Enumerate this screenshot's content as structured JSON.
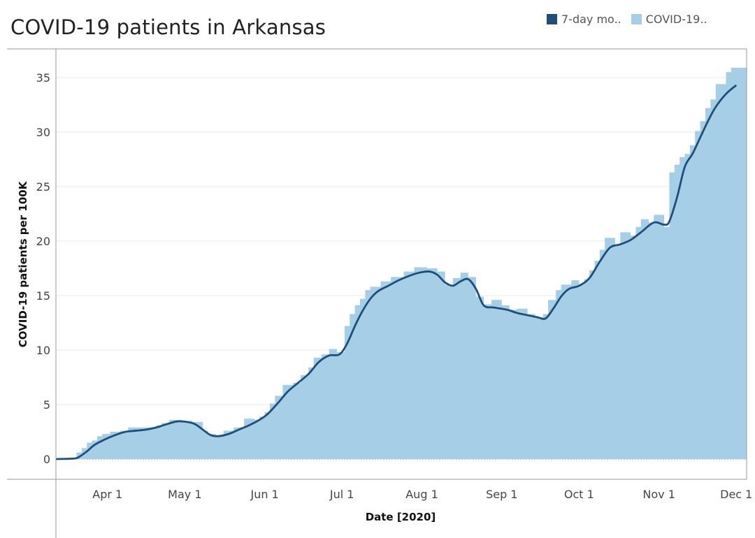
{
  "title": "COVID-19 patients in Arkansas",
  "colors": {
    "line": "#1f4e79",
    "area": "#a6cee6",
    "axis": "#999999",
    "grid": "#ebebeb"
  },
  "legend": [
    {
      "label": "7-day mo..",
      "color": "#1f4e79"
    },
    {
      "label": "COVID-19..",
      "color": "#a6cee6"
    }
  ],
  "chart_data": {
    "type": "area",
    "xlabel": "Date [2020]",
    "ylabel": "COVID-19 patients per 100K",
    "ylim": [
      0,
      37.5
    ],
    "yticks": [
      0,
      5,
      10,
      15,
      20,
      25,
      30,
      35
    ],
    "xlim": [
      "2020-03-12",
      "2020-12-05"
    ],
    "xticks": [
      {
        "label": "Apr 1",
        "date": "2020-04-01"
      },
      {
        "label": "May 1",
        "date": "2020-05-01"
      },
      {
        "label": "Jun 1",
        "date": "2020-06-01"
      },
      {
        "label": "Jul 1",
        "date": "2020-07-01"
      },
      {
        "label": "Aug 1",
        "date": "2020-08-01"
      },
      {
        "label": "Sep 1",
        "date": "2020-09-01"
      },
      {
        "label": "Oct 1",
        "date": "2020-10-01"
      },
      {
        "label": "Nov 1",
        "date": "2020-11-01"
      },
      {
        "label": "Dec 1",
        "date": "2020-12-01"
      }
    ],
    "grid": true,
    "series": [
      {
        "name": "COVID-19..",
        "kind": "step-area",
        "points": [
          [
            "2020-03-12",
            0
          ],
          [
            "2020-03-19",
            0
          ],
          [
            "2020-03-20",
            0.6
          ],
          [
            "2020-03-22",
            1.0
          ],
          [
            "2020-03-24",
            1.5
          ],
          [
            "2020-03-26",
            1.7
          ],
          [
            "2020-03-28",
            2.1
          ],
          [
            "2020-03-30",
            2.3
          ],
          [
            "2020-04-02",
            2.5
          ],
          [
            "2020-04-06",
            2.6
          ],
          [
            "2020-04-09",
            2.9
          ],
          [
            "2020-04-14",
            2.9
          ],
          [
            "2020-04-18",
            2.9
          ],
          [
            "2020-04-20",
            3.1
          ],
          [
            "2020-04-22",
            3.3
          ],
          [
            "2020-04-25",
            3.6
          ],
          [
            "2020-04-27",
            3.6
          ],
          [
            "2020-04-30",
            3.5
          ],
          [
            "2020-05-04",
            3.4
          ],
          [
            "2020-05-08",
            2.6
          ],
          [
            "2020-05-10",
            2.3
          ],
          [
            "2020-05-13",
            2.2
          ],
          [
            "2020-05-16",
            2.6
          ],
          [
            "2020-05-20",
            2.9
          ],
          [
            "2020-05-24",
            3.7
          ],
          [
            "2020-05-28",
            3.6
          ],
          [
            "2020-05-30",
            3.9
          ],
          [
            "2020-06-01",
            4.3
          ],
          [
            "2020-06-03",
            5.1
          ],
          [
            "2020-06-05",
            5.8
          ],
          [
            "2020-06-08",
            6.8
          ],
          [
            "2020-06-12",
            7.0
          ],
          [
            "2020-06-15",
            7.7
          ],
          [
            "2020-06-18",
            8.4
          ],
          [
            "2020-06-20",
            9.3
          ],
          [
            "2020-06-23",
            9.6
          ],
          [
            "2020-06-26",
            10.1
          ],
          [
            "2020-06-29",
            9.8
          ],
          [
            "2020-07-02",
            12.2
          ],
          [
            "2020-07-04",
            13.3
          ],
          [
            "2020-07-06",
            14.1
          ],
          [
            "2020-07-08",
            14.7
          ],
          [
            "2020-07-10",
            15.5
          ],
          [
            "2020-07-12",
            15.8
          ],
          [
            "2020-07-16",
            16.3
          ],
          [
            "2020-07-20",
            16.7
          ],
          [
            "2020-07-25",
            17.2
          ],
          [
            "2020-07-29",
            17.6
          ],
          [
            "2020-08-03",
            17.5
          ],
          [
            "2020-08-07",
            17.2
          ],
          [
            "2020-08-10",
            16.0
          ],
          [
            "2020-08-13",
            16.6
          ],
          [
            "2020-08-16",
            17.1
          ],
          [
            "2020-08-19",
            16.7
          ],
          [
            "2020-08-22",
            14.9
          ],
          [
            "2020-08-25",
            14.2
          ],
          [
            "2020-08-28",
            14.6
          ],
          [
            "2020-09-01",
            14.1
          ],
          [
            "2020-09-04",
            13.7
          ],
          [
            "2020-09-07",
            13.8
          ],
          [
            "2020-09-11",
            13.3
          ],
          [
            "2020-09-14",
            13.0
          ],
          [
            "2020-09-17",
            13.3
          ],
          [
            "2020-09-19",
            14.6
          ],
          [
            "2020-09-22",
            15.5
          ],
          [
            "2020-09-24",
            16.0
          ],
          [
            "2020-09-28",
            16.4
          ],
          [
            "2020-10-01",
            16.0
          ],
          [
            "2020-10-03",
            16.5
          ],
          [
            "2020-10-05",
            17.3
          ],
          [
            "2020-10-07",
            18.2
          ],
          [
            "2020-10-09",
            19.2
          ],
          [
            "2020-10-11",
            20.3
          ],
          [
            "2020-10-15",
            19.7
          ],
          [
            "2020-10-17",
            20.8
          ],
          [
            "2020-10-21",
            20.5
          ],
          [
            "2020-10-23",
            21.3
          ],
          [
            "2020-10-25",
            22.0
          ],
          [
            "2020-10-28",
            21.7
          ],
          [
            "2020-10-30",
            22.4
          ],
          [
            "2020-11-03",
            21.3
          ],
          [
            "2020-11-05",
            26.3
          ],
          [
            "2020-11-07",
            27.0
          ],
          [
            "2020-11-09",
            27.7
          ],
          [
            "2020-11-11",
            28.0
          ],
          [
            "2020-11-13",
            28.8
          ],
          [
            "2020-11-15",
            30.1
          ],
          [
            "2020-11-17",
            31.0
          ],
          [
            "2020-11-19",
            32.2
          ],
          [
            "2020-11-21",
            33.0
          ],
          [
            "2020-11-23",
            34.4
          ],
          [
            "2020-11-27",
            35.5
          ],
          [
            "2020-11-29",
            35.9
          ],
          [
            "2020-12-05",
            35.9
          ]
        ]
      },
      {
        "name": "7-day mo..",
        "kind": "line",
        "points": [
          [
            "2020-03-12",
            0
          ],
          [
            "2020-03-19",
            0.05
          ],
          [
            "2020-03-21",
            0.2
          ],
          [
            "2020-03-24",
            0.7
          ],
          [
            "2020-03-27",
            1.3
          ],
          [
            "2020-03-31",
            1.8
          ],
          [
            "2020-04-04",
            2.2
          ],
          [
            "2020-04-08",
            2.5
          ],
          [
            "2020-04-12",
            2.6
          ],
          [
            "2020-04-16",
            2.7
          ],
          [
            "2020-04-20",
            2.9
          ],
          [
            "2020-04-24",
            3.2
          ],
          [
            "2020-04-28",
            3.45
          ],
          [
            "2020-05-02",
            3.4
          ],
          [
            "2020-05-05",
            3.2
          ],
          [
            "2020-05-08",
            2.7
          ],
          [
            "2020-05-11",
            2.2
          ],
          [
            "2020-05-14",
            2.1
          ],
          [
            "2020-05-18",
            2.3
          ],
          [
            "2020-05-22",
            2.7
          ],
          [
            "2020-05-26",
            3.1
          ],
          [
            "2020-05-30",
            3.6
          ],
          [
            "2020-06-02",
            4.1
          ],
          [
            "2020-06-06",
            5.1
          ],
          [
            "2020-06-10",
            6.2
          ],
          [
            "2020-06-14",
            7.0
          ],
          [
            "2020-06-18",
            7.8
          ],
          [
            "2020-06-22",
            8.9
          ],
          [
            "2020-06-26",
            9.5
          ],
          [
            "2020-06-30",
            9.6
          ],
          [
            "2020-07-03",
            10.6
          ],
          [
            "2020-07-06",
            12.2
          ],
          [
            "2020-07-09",
            13.6
          ],
          [
            "2020-07-12",
            14.7
          ],
          [
            "2020-07-15",
            15.4
          ],
          [
            "2020-07-19",
            15.9
          ],
          [
            "2020-07-23",
            16.4
          ],
          [
            "2020-07-27",
            16.8
          ],
          [
            "2020-07-31",
            17.1
          ],
          [
            "2020-08-04",
            17.2
          ],
          [
            "2020-08-07",
            16.9
          ],
          [
            "2020-08-10",
            16.2
          ],
          [
            "2020-08-13",
            15.9
          ],
          [
            "2020-08-16",
            16.3
          ],
          [
            "2020-08-19",
            16.5
          ],
          [
            "2020-08-22",
            15.6
          ],
          [
            "2020-08-25",
            14.1
          ],
          [
            "2020-08-29",
            13.9
          ],
          [
            "2020-09-03",
            13.7
          ],
          [
            "2020-09-07",
            13.4
          ],
          [
            "2020-09-11",
            13.2
          ],
          [
            "2020-09-15",
            13.0
          ],
          [
            "2020-09-18",
            12.9
          ],
          [
            "2020-09-21",
            13.8
          ],
          [
            "2020-09-24",
            14.9
          ],
          [
            "2020-09-27",
            15.6
          ],
          [
            "2020-10-01",
            15.9
          ],
          [
            "2020-10-05",
            16.6
          ],
          [
            "2020-10-09",
            18.1
          ],
          [
            "2020-10-13",
            19.4
          ],
          [
            "2020-10-17",
            19.7
          ],
          [
            "2020-10-21",
            20.1
          ],
          [
            "2020-10-25",
            20.8
          ],
          [
            "2020-10-30",
            21.7
          ],
          [
            "2020-11-03",
            21.5
          ],
          [
            "2020-11-05",
            21.8
          ],
          [
            "2020-11-08",
            24.0
          ],
          [
            "2020-11-11",
            26.8
          ],
          [
            "2020-11-14",
            28.0
          ],
          [
            "2020-11-17",
            29.5
          ],
          [
            "2020-11-20",
            31.0
          ],
          [
            "2020-11-23",
            32.3
          ],
          [
            "2020-11-27",
            33.5
          ],
          [
            "2020-12-01",
            34.3
          ]
        ]
      }
    ]
  }
}
